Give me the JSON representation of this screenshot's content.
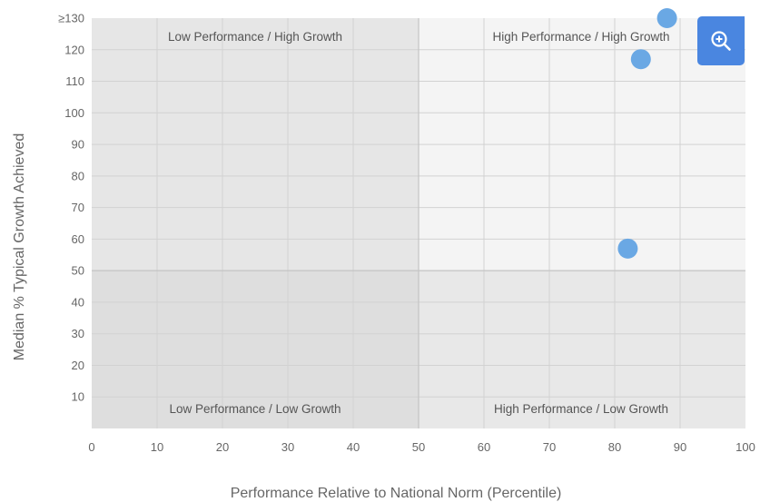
{
  "chart_data": {
    "type": "scatter",
    "xlabel": "Performance Relative to National Norm (Percentile)",
    "ylabel": "Median % Typical Growth Achieved",
    "xlim": [
      0,
      100
    ],
    "ylim": [
      0,
      130
    ],
    "x_ticks": [
      0,
      10,
      20,
      30,
      40,
      50,
      60,
      70,
      80,
      90,
      100
    ],
    "y_ticks": [
      {
        "value": 10,
        "label": "10"
      },
      {
        "value": 20,
        "label": "20"
      },
      {
        "value": 30,
        "label": "30"
      },
      {
        "value": 40,
        "label": "40"
      },
      {
        "value": 50,
        "label": "50"
      },
      {
        "value": 60,
        "label": "60"
      },
      {
        "value": 70,
        "label": "70"
      },
      {
        "value": 80,
        "label": "80"
      },
      {
        "value": 90,
        "label": "90"
      },
      {
        "value": 100,
        "label": "100"
      },
      {
        "value": 110,
        "label": "110"
      },
      {
        "value": 120,
        "label": "120"
      },
      {
        "value": 130,
        "label": "≥130"
      }
    ],
    "quadrants": {
      "top_left": "Low Performance / High Growth",
      "top_right": "High Performance / High Growth",
      "bottom_left": "Low Performance / Low Growth",
      "bottom_right": "High Performance / Low Growth"
    },
    "thresholds": {
      "x": 50,
      "y": 50
    },
    "points": [
      {
        "x": 88,
        "y": 130
      },
      {
        "x": 84,
        "y": 117
      },
      {
        "x": 82,
        "y": 57
      }
    ],
    "grid": true,
    "colors": {
      "point": "#6aa8e4",
      "low_high": "#e6e6e6",
      "high_high": "#f4f4f4",
      "low_low": "#dedede",
      "high_low": "#e8e8e8",
      "grid": "#d2d2d2"
    }
  },
  "toolbar": {
    "zoom_icon": "zoom-in-icon"
  }
}
